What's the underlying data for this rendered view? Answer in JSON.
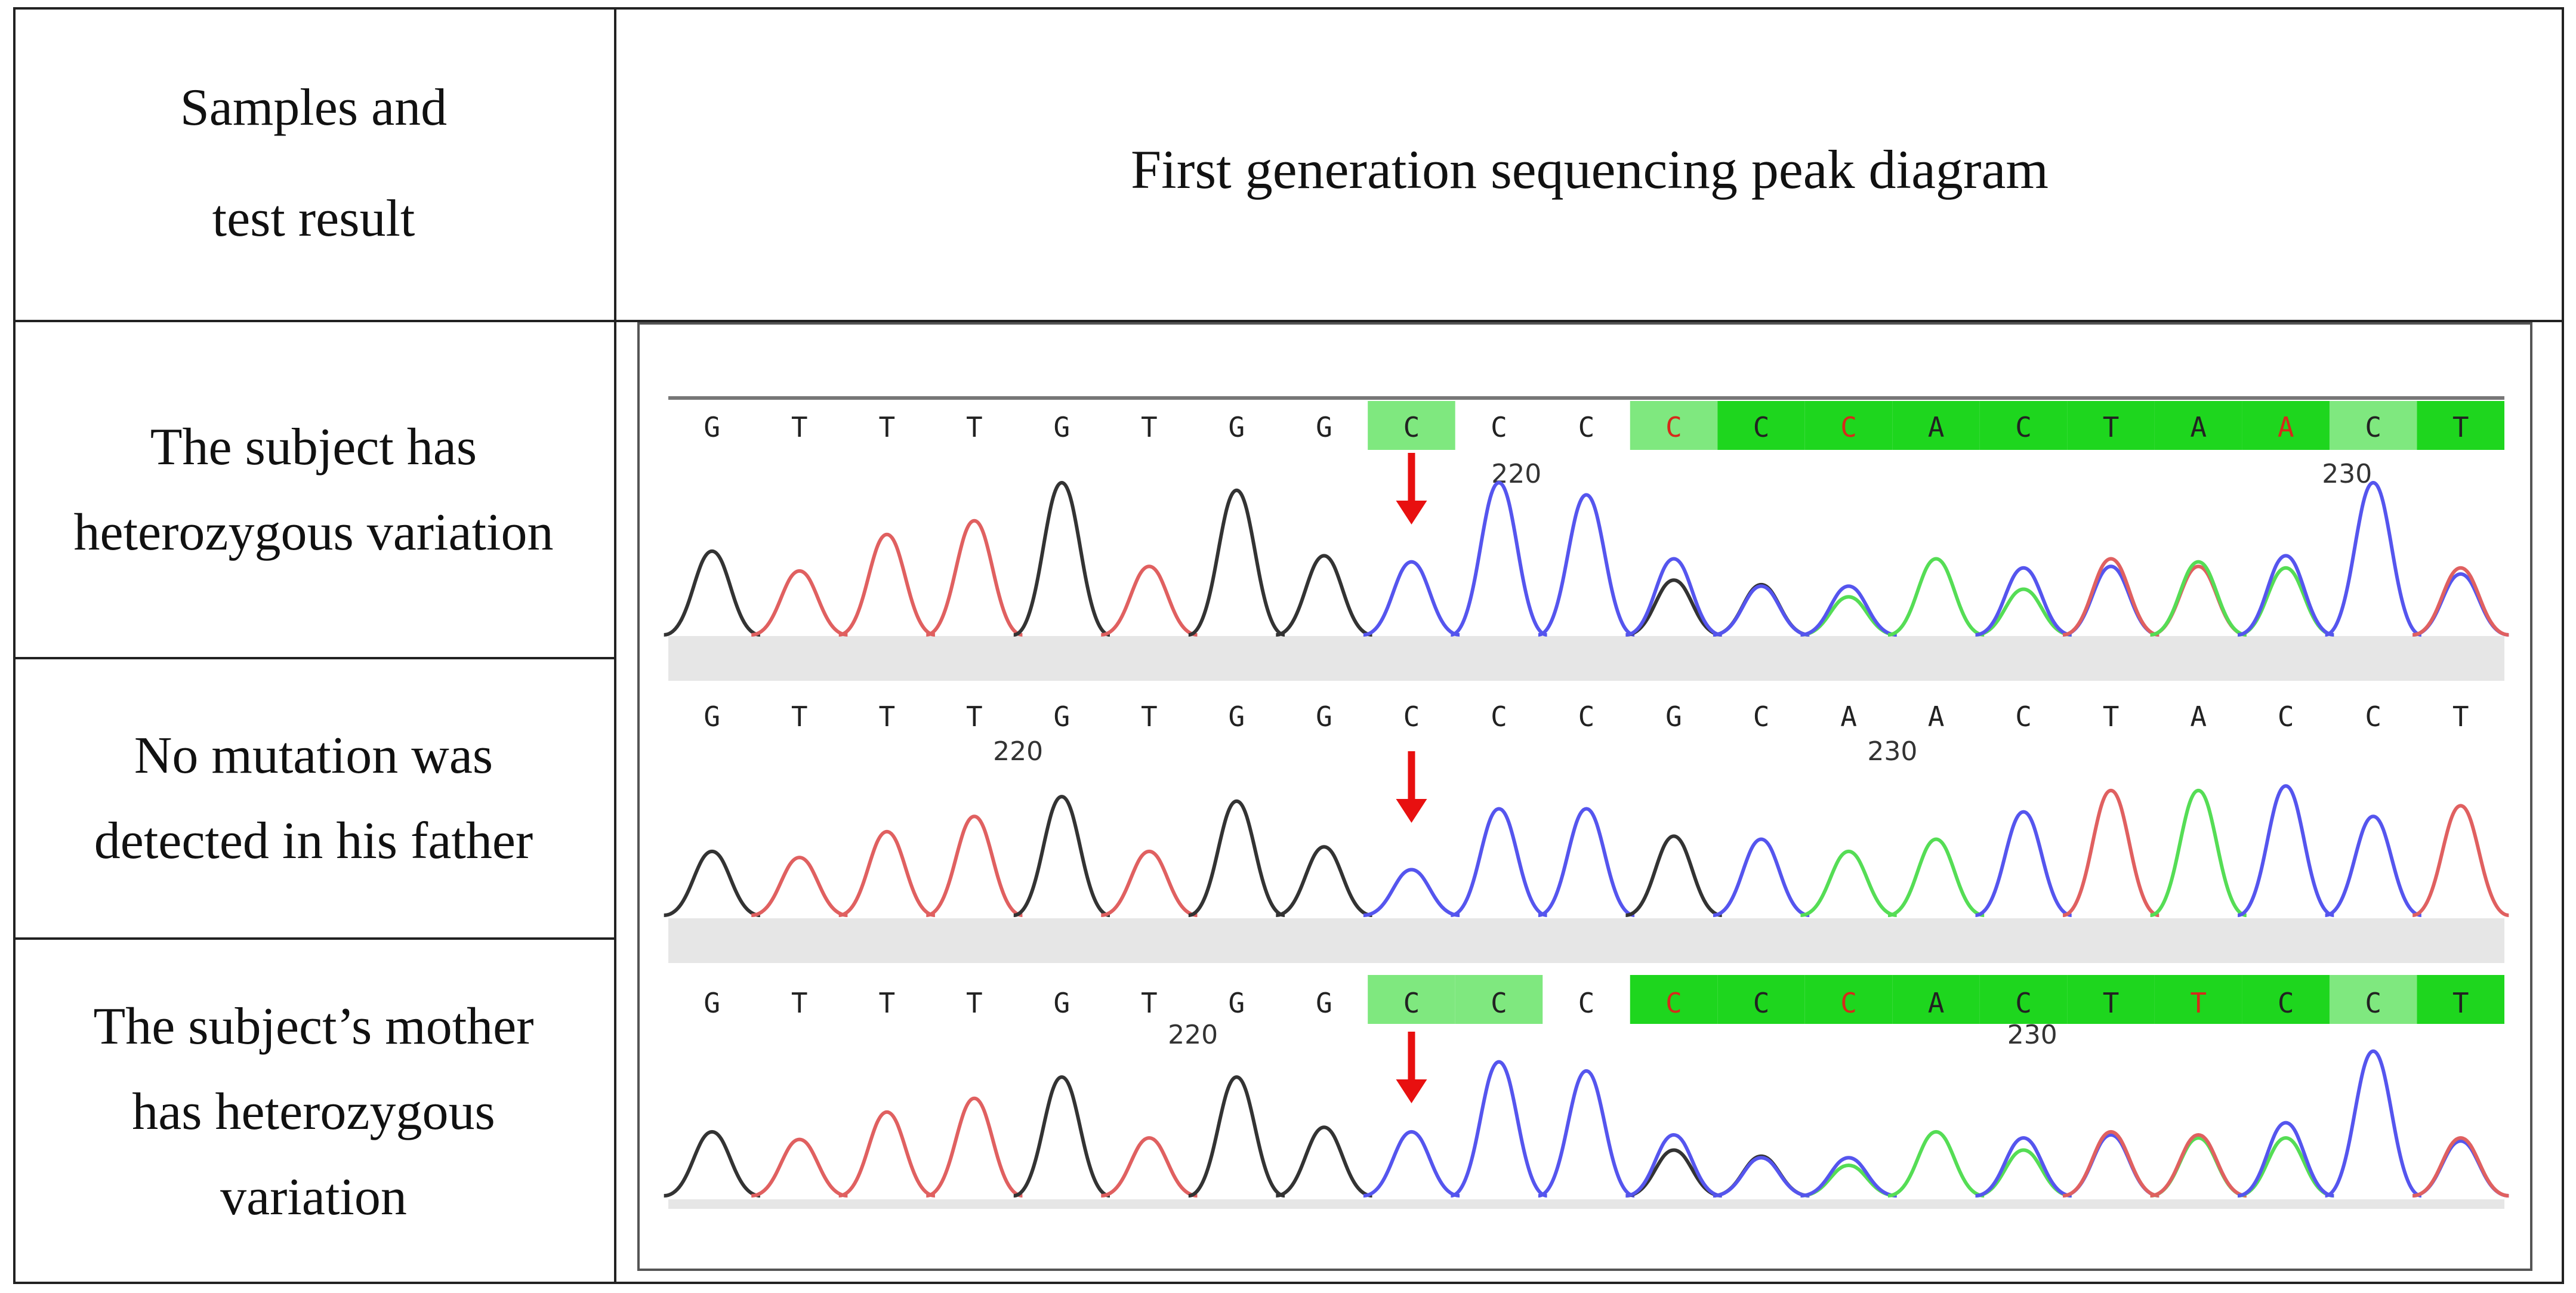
{
  "header": {
    "left_line1": "Samples and",
    "left_line2": "test result",
    "right": "First generation sequencing peak diagram"
  },
  "rows": [
    {
      "line1": "The subject has",
      "line2": "heterozygous variation",
      "line3": ""
    },
    {
      "line1": "No mutation was",
      "line2": "detected in his father",
      "line3": ""
    },
    {
      "line1": "The subject’s mother",
      "line2": "has heterozygous",
      "line3": "variation"
    }
  ],
  "traces": [
    {
      "bases": [
        "G",
        "T",
        "T",
        "T",
        "G",
        "T",
        "G",
        "G",
        "C",
        "C",
        "C",
        "C",
        "C",
        "C",
        "A",
        "C",
        "T",
        "A",
        "A",
        "C",
        "T"
      ],
      "base_colors": [
        "#222",
        "#222",
        "#222",
        "#222",
        "#222",
        "#222",
        "#222",
        "#222",
        "#222",
        "#222",
        "#222",
        "#d62a1a",
        "#222",
        "#d62a1a",
        "#222",
        "#222",
        "#222",
        "#222",
        "#d62a1a",
        "#222",
        "#222"
      ],
      "highlight_light": [
        8,
        11,
        19
      ],
      "highlight_strong": [
        12,
        13,
        14,
        15,
        16,
        17,
        18,
        20
      ],
      "position_labels": [
        {
          "index": 9.7,
          "text": "220"
        },
        {
          "index": 19.2,
          "text": "230"
        }
      ],
      "arrow_index": 8,
      "peaks": [
        {
          "c": "#333",
          "h": 0.55
        },
        {
          "c": "#e06060",
          "h": 0.42
        },
        {
          "c": "#e06060",
          "h": 0.66
        },
        {
          "c": "#e06060",
          "h": 0.75
        },
        {
          "c": "#333",
          "h": 1.0
        },
        {
          "c": "#e06060",
          "h": 0.45
        },
        {
          "c": "#333",
          "h": 0.95
        },
        {
          "c": "#333",
          "h": 0.52
        },
        {
          "c": "#5555ee",
          "h": 0.48
        },
        {
          "c": "#5555ee",
          "h": 1.0
        },
        {
          "c": "#5555ee",
          "h": 0.92
        },
        {
          "c": "#5555ee",
          "h": 0.5,
          "o": "#333",
          "oh": 0.36
        },
        {
          "c": "#5555ee",
          "h": 0.32,
          "o": "#333",
          "oh": 0.33
        },
        {
          "c": "#5555ee",
          "h": 0.32,
          "o": "#55dd55",
          "oh": 0.25
        },
        {
          "c": "#55dd55",
          "h": 0.5
        },
        {
          "c": "#5555ee",
          "h": 0.44,
          "o": "#55dd55",
          "oh": 0.3
        },
        {
          "c": "#e06060",
          "h": 0.5,
          "o": "#5555ee",
          "oh": 0.45
        },
        {
          "c": "#55dd55",
          "h": 0.48,
          "o": "#e06060",
          "oh": 0.45
        },
        {
          "c": "#5555ee",
          "h": 0.52,
          "o": "#55dd55",
          "oh": 0.44
        },
        {
          "c": "#5555ee",
          "h": 1.0
        },
        {
          "c": "#e06060",
          "h": 0.44,
          "o": "#5555ee",
          "oh": 0.4
        }
      ]
    },
    {
      "bases": [
        "G",
        "T",
        "T",
        "T",
        "G",
        "T",
        "G",
        "G",
        "C",
        "C",
        "C",
        "G",
        "C",
        "A",
        "A",
        "C",
        "T",
        "A",
        "C",
        "C",
        "T"
      ],
      "base_colors": [
        "#222",
        "#222",
        "#222",
        "#222",
        "#222",
        "#222",
        "#222",
        "#222",
        "#222",
        "#222",
        "#222",
        "#222",
        "#222",
        "#222",
        "#222",
        "#222",
        "#222",
        "#222",
        "#222",
        "#222",
        "#222"
      ],
      "highlight_light": [],
      "highlight_strong": [],
      "position_labels": [
        {
          "index": 4.0,
          "text": "220"
        },
        {
          "index": 14.0,
          "text": "230"
        }
      ],
      "arrow_index": 8,
      "peaks": [
        {
          "c": "#333",
          "h": 0.42
        },
        {
          "c": "#e06060",
          "h": 0.38
        },
        {
          "c": "#e06060",
          "h": 0.55
        },
        {
          "c": "#e06060",
          "h": 0.65
        },
        {
          "c": "#333",
          "h": 0.78
        },
        {
          "c": "#e06060",
          "h": 0.42
        },
        {
          "c": "#333",
          "h": 0.75
        },
        {
          "c": "#333",
          "h": 0.45
        },
        {
          "c": "#5555ee",
          "h": 0.3
        },
        {
          "c": "#5555ee",
          "h": 0.7
        },
        {
          "c": "#5555ee",
          "h": 0.7
        },
        {
          "c": "#333",
          "h": 0.52
        },
        {
          "c": "#5555ee",
          "h": 0.5
        },
        {
          "c": "#55dd55",
          "h": 0.42
        },
        {
          "c": "#55dd55",
          "h": 0.5
        },
        {
          "c": "#5555ee",
          "h": 0.68
        },
        {
          "c": "#e06060",
          "h": 0.82
        },
        {
          "c": "#55dd55",
          "h": 0.82
        },
        {
          "c": "#5555ee",
          "h": 0.85
        },
        {
          "c": "#5555ee",
          "h": 0.65
        },
        {
          "c": "#e06060",
          "h": 0.72
        }
      ]
    },
    {
      "bases": [
        "G",
        "T",
        "T",
        "T",
        "G",
        "T",
        "G",
        "G",
        "C",
        "C",
        "C",
        "C",
        "C",
        "C",
        "A",
        "C",
        "T",
        "T",
        "C",
        "C",
        "T"
      ],
      "base_colors": [
        "#222",
        "#222",
        "#222",
        "#222",
        "#222",
        "#222",
        "#222",
        "#222",
        "#222",
        "#222",
        "#222",
        "#d62a1a",
        "#222",
        "#d62a1a",
        "#222",
        "#222",
        "#222",
        "#d62a1a",
        "#222",
        "#222",
        "#222"
      ],
      "highlight_light": [
        8,
        9,
        19
      ],
      "highlight_strong": [
        11,
        12,
        13,
        14,
        15,
        16,
        17,
        18,
        20
      ],
      "position_labels": [
        {
          "index": 6.0,
          "text": "220"
        },
        {
          "index": 15.6,
          "text": "230"
        }
      ],
      "arrow_index": 8,
      "peaks": [
        {
          "c": "#333",
          "h": 0.42
        },
        {
          "c": "#e06060",
          "h": 0.37
        },
        {
          "c": "#e06060",
          "h": 0.55
        },
        {
          "c": "#e06060",
          "h": 0.64
        },
        {
          "c": "#333",
          "h": 0.78
        },
        {
          "c": "#e06060",
          "h": 0.38
        },
        {
          "c": "#333",
          "h": 0.78
        },
        {
          "c": "#333",
          "h": 0.45
        },
        {
          "c": "#5555ee",
          "h": 0.42
        },
        {
          "c": "#5555ee",
          "h": 0.88
        },
        {
          "c": "#5555ee",
          "h": 0.82
        },
        {
          "c": "#5555ee",
          "h": 0.4,
          "o": "#333",
          "oh": 0.3
        },
        {
          "c": "#5555ee",
          "h": 0.25,
          "o": "#333",
          "oh": 0.26
        },
        {
          "c": "#5555ee",
          "h": 0.25,
          "o": "#55dd55",
          "oh": 0.2
        },
        {
          "c": "#55dd55",
          "h": 0.42
        },
        {
          "c": "#5555ee",
          "h": 0.38,
          "o": "#55dd55",
          "oh": 0.3
        },
        {
          "c": "#e06060",
          "h": 0.42,
          "o": "#5555ee",
          "oh": 0.4
        },
        {
          "c": "#e06060",
          "h": 0.4,
          "o": "#55dd55",
          "oh": 0.38
        },
        {
          "c": "#5555ee",
          "h": 0.48,
          "o": "#55dd55",
          "oh": 0.38
        },
        {
          "c": "#5555ee",
          "h": 0.95
        },
        {
          "c": "#e06060",
          "h": 0.38,
          "o": "#5555ee",
          "oh": 0.36
        }
      ]
    }
  ]
}
